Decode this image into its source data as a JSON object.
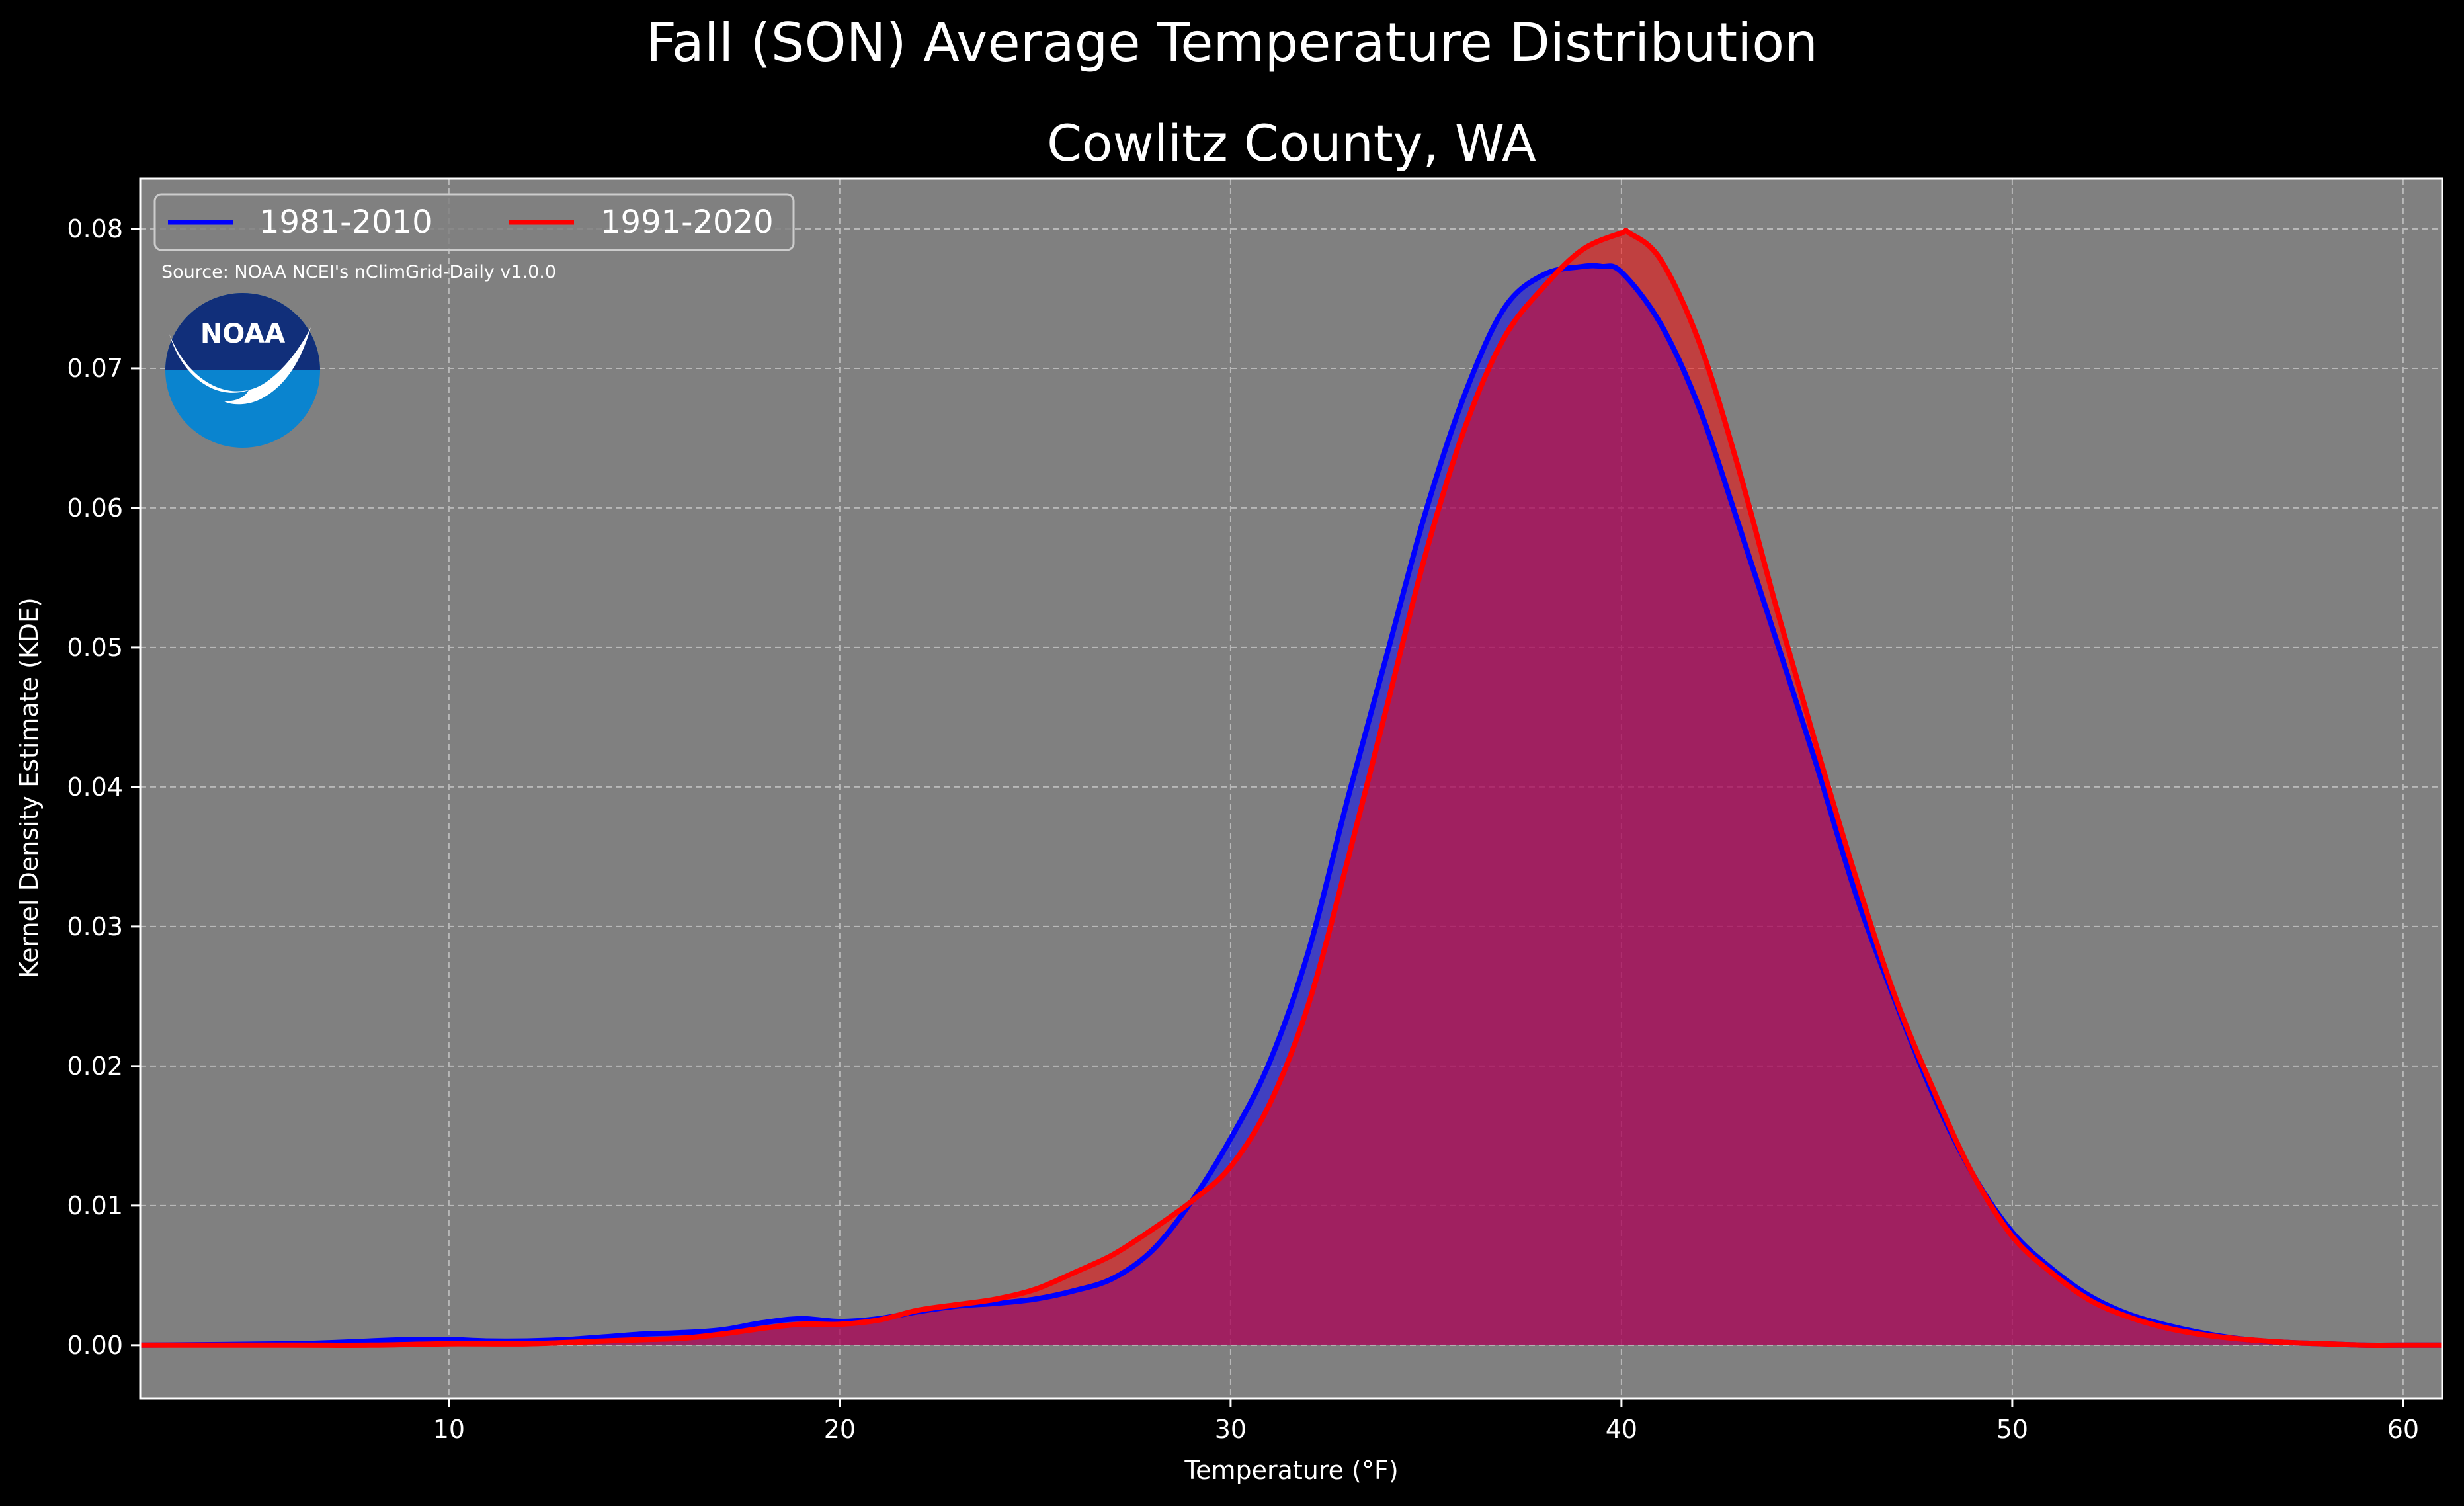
{
  "chart_data": {
    "type": "area",
    "suptitle": "Fall (SON) Average Temperature Distribution",
    "title": "Cowlitz County, WA",
    "xlabel": "Temperature ($^\\circ$F)",
    "xlabel_display": "Temperature (°F)",
    "ylabel": "Kernel Density Estimate (KDE)",
    "xlim": [
      2.1,
      61.0
    ],
    "ylim": [
      -0.0038,
      0.0836
    ],
    "xticks": [
      10,
      20,
      30,
      40,
      50,
      60
    ],
    "yticks": [
      0.0,
      0.01,
      0.02,
      0.03,
      0.04,
      0.05,
      0.06,
      0.07,
      0.08
    ],
    "xtick_labels": [
      "10",
      "20",
      "30",
      "40",
      "50",
      "60"
    ],
    "ytick_labels": [
      "0.00",
      "0.01",
      "0.02",
      "0.03",
      "0.04",
      "0.05",
      "0.06",
      "0.07",
      "0.08"
    ],
    "grid": true,
    "legend_placement": "upper-left",
    "source_note": "Source: NOAA NCEI's nClimGrid-Daily v1.0.0",
    "logo_text": "NOAA",
    "series": [
      {
        "name": "1981-2010",
        "color": "#0000ff",
        "x": [
          2,
          6,
          8,
          9,
          10,
          11,
          12,
          13,
          14,
          15,
          16,
          17,
          18,
          19,
          20,
          21,
          22,
          23,
          24,
          25,
          26,
          27,
          28,
          29,
          30,
          31,
          32,
          33,
          34,
          35,
          36,
          37,
          38,
          39,
          39.5,
          40,
          41,
          42,
          43,
          44,
          45,
          46,
          47,
          48,
          49,
          50,
          51,
          52,
          53,
          54,
          55,
          56,
          57,
          58,
          59,
          60,
          61
        ],
        "y": [
          0.0,
          0.0001,
          0.0003,
          0.0004,
          0.0004,
          0.0003,
          0.0003,
          0.0004,
          0.0006,
          0.0008,
          0.0009,
          0.0011,
          0.0016,
          0.0019,
          0.0017,
          0.0019,
          0.0024,
          0.0028,
          0.003,
          0.0033,
          0.0039,
          0.0048,
          0.0068,
          0.0103,
          0.0148,
          0.0203,
          0.0283,
          0.0392,
          0.0495,
          0.0598,
          0.0682,
          0.0743,
          0.0767,
          0.0773,
          0.0773,
          0.0769,
          0.0732,
          0.0671,
          0.0588,
          0.0502,
          0.0415,
          0.0323,
          0.0247,
          0.0178,
          0.0122,
          0.0081,
          0.0055,
          0.0035,
          0.0022,
          0.0014,
          0.0008,
          0.0004,
          0.0002,
          0.0001,
          0.0,
          0.0,
          0.0
        ]
      },
      {
        "name": "1991-2020",
        "color": "#ff0000",
        "x": [
          2,
          6,
          8,
          10,
          12,
          14,
          15,
          16,
          17,
          18,
          19,
          20,
          21,
          22,
          23,
          24,
          25,
          26,
          27,
          28,
          29,
          30,
          31,
          32,
          33,
          34,
          35,
          36,
          37,
          38,
          39,
          40,
          40.2,
          41,
          42,
          43,
          44,
          45,
          46,
          47,
          48,
          49,
          50,
          51,
          52,
          53,
          54,
          55,
          56,
          57,
          58,
          59,
          60,
          61
        ],
        "y": [
          0.0,
          0.0,
          0.0,
          0.0001,
          0.0001,
          0.0003,
          0.0004,
          0.0005,
          0.0008,
          0.0012,
          0.0015,
          0.0015,
          0.0018,
          0.0025,
          0.0029,
          0.0033,
          0.004,
          0.0052,
          0.0065,
          0.0083,
          0.0103,
          0.0128,
          0.0173,
          0.0245,
          0.0348,
          0.0458,
          0.0568,
          0.0658,
          0.0722,
          0.0758,
          0.0785,
          0.0797,
          0.0797,
          0.0778,
          0.0718,
          0.0628,
          0.0525,
          0.0428,
          0.0335,
          0.025,
          0.0182,
          0.0122,
          0.0078,
          0.0052,
          0.0032,
          0.002,
          0.0012,
          0.0007,
          0.0004,
          0.0002,
          0.0001,
          0.0,
          0.0,
          0.0
        ]
      }
    ]
  }
}
